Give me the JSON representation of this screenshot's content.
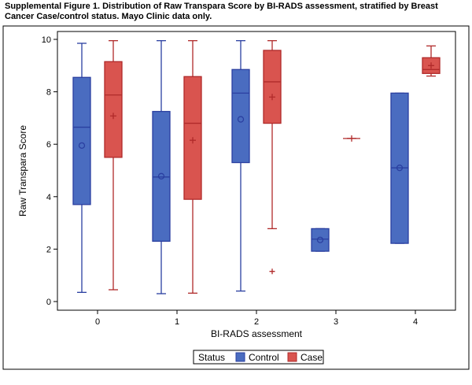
{
  "title": "Supplemental Figure 1.  Distribution of Raw Transpara Score by BI-RADS assessment, stratified by Breast Cancer Case/control status.  Mayo Clinic data only.",
  "chart_data": {
    "type": "box",
    "xlabel": "BI-RADS assessment",
    "ylabel": "Raw Transpara Score",
    "categories": [
      "0",
      "1",
      "2",
      "3",
      "4"
    ],
    "ylim": [
      0,
      10
    ],
    "yticks": [
      0,
      2,
      4,
      6,
      8,
      10
    ],
    "legend": {
      "title": "Status",
      "position": "bottom"
    },
    "series": [
      {
        "name": "Control",
        "color": "#4a6cc0",
        "stroke": "#2a3fa0",
        "mean_marker": "circle",
        "boxes": [
          {
            "category": "0",
            "min": 0.35,
            "q1": 3.7,
            "median": 6.65,
            "q3": 8.55,
            "max": 9.85,
            "mean": 5.95,
            "outliers": []
          },
          {
            "category": "1",
            "min": 0.3,
            "q1": 2.3,
            "median": 4.75,
            "q3": 7.25,
            "max": 9.95,
            "mean": 4.78,
            "outliers": []
          },
          {
            "category": "2",
            "min": 0.4,
            "q1": 5.3,
            "median": 7.95,
            "q3": 8.85,
            "max": 9.95,
            "mean": 6.95,
            "outliers": []
          },
          {
            "category": "3",
            "min": 1.92,
            "q1": 1.92,
            "median": 2.38,
            "q3": 2.78,
            "max": 2.78,
            "mean": 2.35,
            "outliers": []
          },
          {
            "category": "4",
            "min": 2.22,
            "q1": 2.22,
            "median": 5.1,
            "q3": 7.95,
            "max": 7.95,
            "mean": 5.1,
            "outliers": []
          }
        ]
      },
      {
        "name": "Case",
        "color": "#d9544f",
        "stroke": "#b02a2a",
        "mean_marker": "plus",
        "boxes": [
          {
            "category": "0",
            "min": 0.45,
            "q1": 5.5,
            "median": 7.88,
            "q3": 9.15,
            "max": 9.95,
            "mean": 7.08,
            "outliers": []
          },
          {
            "category": "1",
            "min": 0.32,
            "q1": 3.9,
            "median": 6.8,
            "q3": 8.58,
            "max": 9.95,
            "mean": 6.15,
            "outliers": []
          },
          {
            "category": "2",
            "min": 2.78,
            "q1": 6.8,
            "median": 8.38,
            "q3": 9.58,
            "max": 9.95,
            "mean": 7.8,
            "outliers": [
              1.15
            ]
          },
          {
            "category": "3",
            "min": 6.22,
            "q1": 6.22,
            "median": 6.22,
            "q3": 6.22,
            "max": 6.22,
            "mean": 6.22,
            "outliers": []
          },
          {
            "category": "4",
            "min": 8.6,
            "q1": 8.7,
            "median": 8.85,
            "q3": 9.3,
            "max": 9.75,
            "mean": 9.0,
            "outliers": []
          }
        ]
      }
    ]
  }
}
